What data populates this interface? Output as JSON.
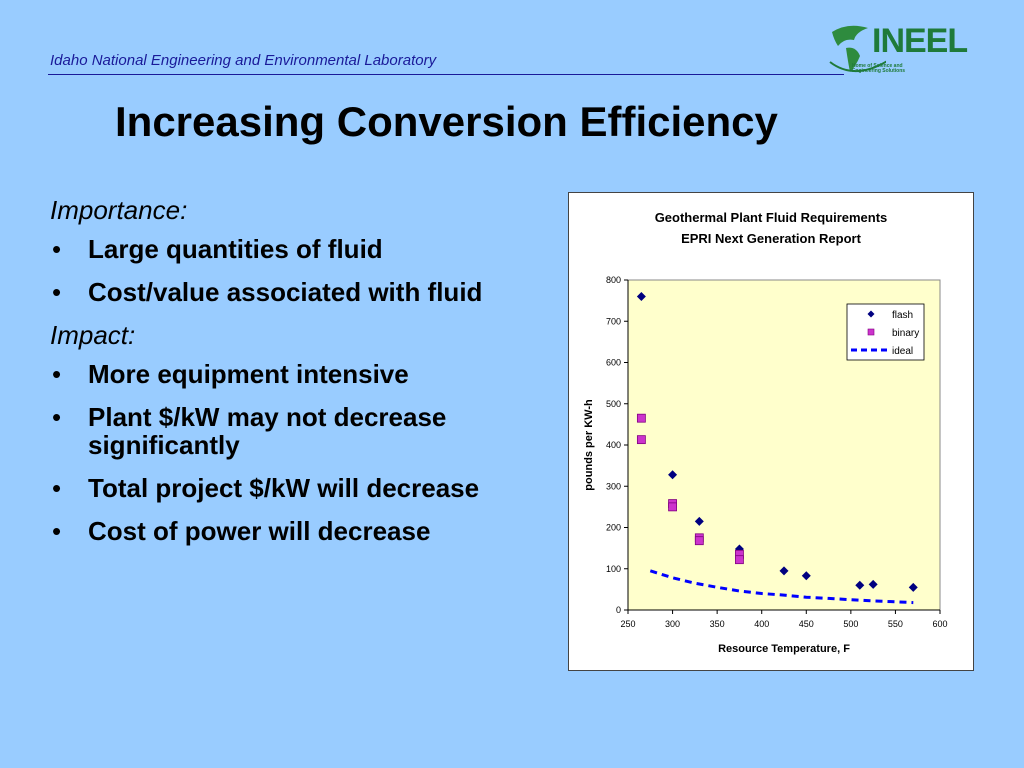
{
  "header": {
    "organization": "Idaho National Engineering and Environmental Laboratory",
    "logo_text": "INEEL",
    "logo_subtext": "Home of Science and Engineering Solutions",
    "rule_color": "#1a1a99"
  },
  "slide": {
    "title": "Increasing Conversion Efficiency",
    "sections": [
      {
        "heading": "Importance:",
        "bullets": [
          "Large quantities of fluid",
          "Cost/value associated with fluid"
        ]
      },
      {
        "heading": "Impact:",
        "bullets": [
          "More equipment intensive",
          "Plant $/kW may not decrease significantly",
          "Total project $/kW will decrease",
          "Cost of power will decrease"
        ]
      }
    ]
  },
  "colors": {
    "background": "#99ccff",
    "plot_area": "#ffffcc",
    "flash": "#000080",
    "binary": "#cc33cc",
    "ideal": "#0000ff"
  },
  "chart_data": {
    "type": "scatter",
    "title": "Geothermal Plant Fluid Requirements",
    "subtitle": "EPRI Next Generation Report",
    "xlabel": "Resource Temperature, F",
    "ylabel": "pounds per KW-h",
    "xlim": [
      250,
      600
    ],
    "ylim": [
      0,
      800
    ],
    "x_ticks": [
      250,
      300,
      350,
      400,
      450,
      500,
      550,
      600
    ],
    "y_ticks": [
      0,
      100,
      200,
      300,
      400,
      500,
      600,
      700,
      800
    ],
    "grid": false,
    "legend_position": "top-right",
    "series": [
      {
        "name": "flash",
        "marker": "diamond",
        "points": [
          [
            265,
            760
          ],
          [
            300,
            328
          ],
          [
            330,
            215
          ],
          [
            375,
            148
          ],
          [
            425,
            95
          ],
          [
            450,
            83
          ],
          [
            510,
            60
          ],
          [
            525,
            62
          ],
          [
            570,
            55
          ]
        ]
      },
      {
        "name": "binary",
        "marker": "square",
        "points": [
          [
            265,
            465
          ],
          [
            265,
            413
          ],
          [
            300,
            258
          ],
          [
            300,
            250
          ],
          [
            330,
            175
          ],
          [
            330,
            168
          ],
          [
            375,
            135
          ],
          [
            375,
            122
          ]
        ]
      },
      {
        "name": "ideal",
        "marker": "dashed-line",
        "points": [
          [
            275,
            95
          ],
          [
            300,
            78
          ],
          [
            325,
            65
          ],
          [
            350,
            55
          ],
          [
            375,
            46
          ],
          [
            400,
            40
          ],
          [
            425,
            36
          ],
          [
            450,
            31
          ],
          [
            475,
            28
          ],
          [
            500,
            25
          ],
          [
            525,
            22
          ],
          [
            550,
            20
          ],
          [
            570,
            18
          ]
        ]
      }
    ]
  }
}
